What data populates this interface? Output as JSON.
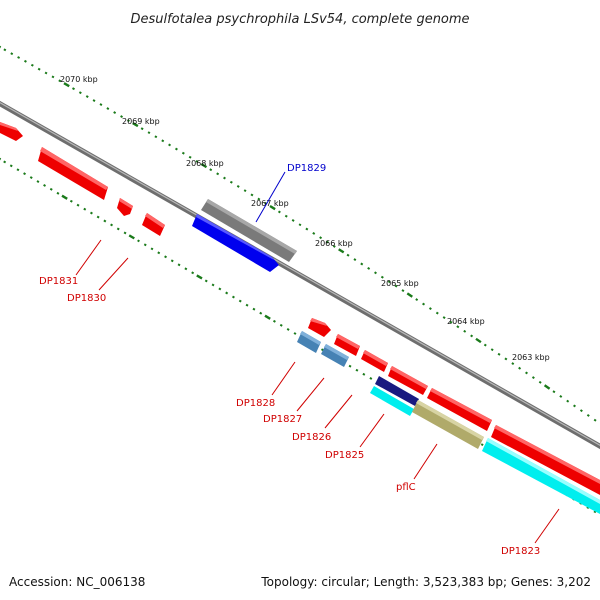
{
  "title": "Desulfotalea psychrophila LSv54, complete genome",
  "footer": {
    "accession": "Accession: NC_006138",
    "topology": "Topology: circular; Length: 3,523,383 bp; Genes: 3,202"
  },
  "ticks": [
    "2070 kbp",
    "2069 kbp",
    "2068 kbp",
    "2067 kbp",
    "2066 kbp",
    "2065 kbp",
    "2064 kbp",
    "2063 kbp"
  ],
  "genes": [
    "DP1829",
    "DP1831",
    "DP1830",
    "DP1828",
    "DP1827",
    "DP1826",
    "DP1825",
    "pflC",
    "DP1823"
  ],
  "colors": {
    "red": "#ff0000",
    "blue": "#0000ee",
    "gray": "#6e6e6e",
    "steel": "#4682b4",
    "navy": "#1a1a80",
    "olive": "#b0aa6a",
    "cyan": "#00eeee",
    "tick_green": "#1a7a1a",
    "label_red": "#d00000",
    "label_blue": "#0000cc"
  }
}
